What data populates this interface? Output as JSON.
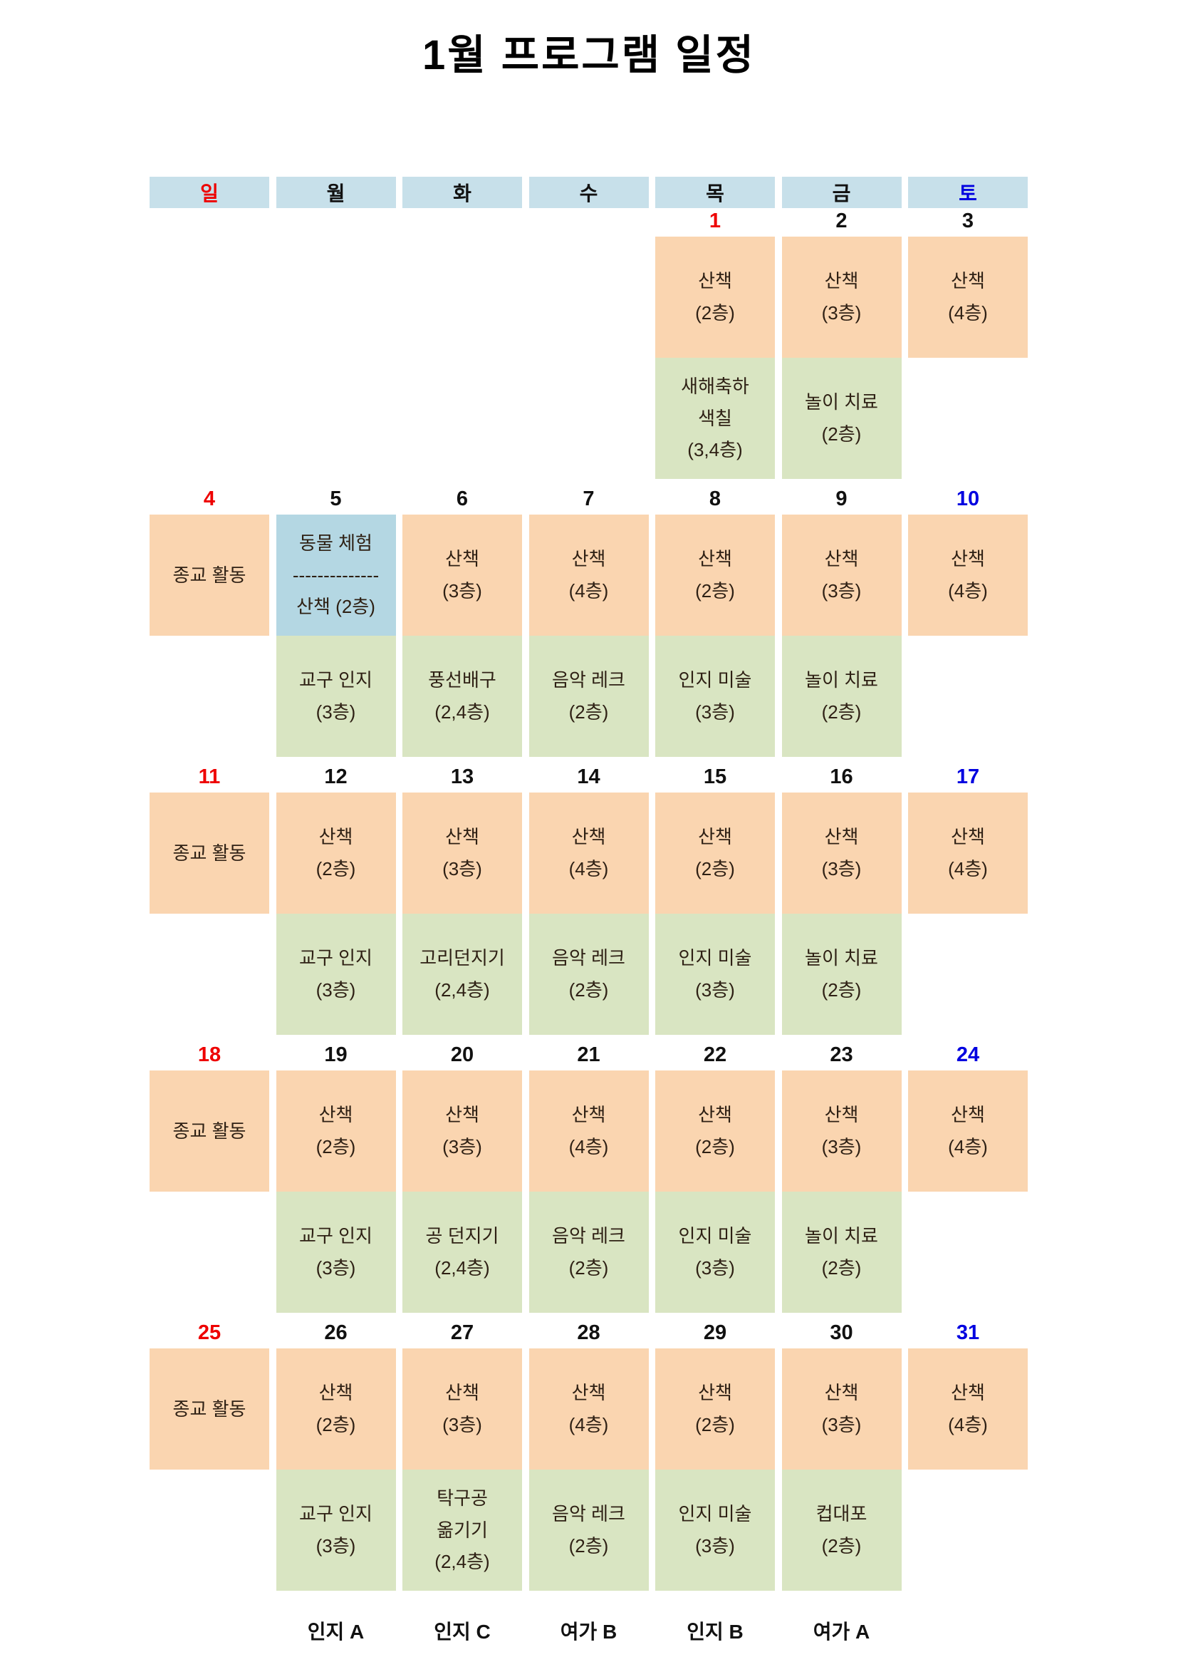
{
  "title": "1월 프로그램 일정",
  "colors": {
    "header_bg": "#c7e0ea",
    "morning_cell_bg": "#fad5b0",
    "afternoon_cell_bg": "#d9e5c2",
    "special_cell_bg": "#b4d7e3",
    "holiday_red": "#ee0000",
    "saturday_blue": "#0000e0"
  },
  "weekday_header": [
    {
      "label": "일",
      "color": "red"
    },
    {
      "label": "월",
      "color": "black"
    },
    {
      "label": "화",
      "color": "black"
    },
    {
      "label": "수",
      "color": "black"
    },
    {
      "label": "목",
      "color": "black"
    },
    {
      "label": "금",
      "color": "black"
    },
    {
      "label": "토",
      "color": "blue"
    }
  ],
  "weeks": [
    [
      null,
      null,
      null,
      null,
      {
        "num": "1",
        "color": "red",
        "top": {
          "bg": "orange",
          "lines": [
            "산책",
            "(2층)"
          ]
        },
        "bottom": {
          "bg": "green",
          "lines": [
            "새해축하",
            "색칠",
            "(3,4층)"
          ]
        }
      },
      {
        "num": "2",
        "color": "black",
        "top": {
          "bg": "orange",
          "lines": [
            "산책",
            "(3층)"
          ]
        },
        "bottom": {
          "bg": "green",
          "lines": [
            "놀이 치료",
            "(2층)"
          ]
        }
      },
      {
        "num": "3",
        "color": "black",
        "top": {
          "bg": "orange",
          "lines": [
            "산책",
            "(4층)"
          ]
        },
        "bottom": null
      }
    ],
    [
      {
        "num": "4",
        "color": "red",
        "top": {
          "bg": "orange",
          "lines": [
            "종교 활동"
          ]
        },
        "bottom": null
      },
      {
        "num": "5",
        "color": "black",
        "top": {
          "bg": "blue",
          "lines": [
            "동물 체험",
            "--------------",
            "산책 (2층)"
          ]
        },
        "bottom": {
          "bg": "green",
          "lines": [
            "교구 인지",
            "(3층)"
          ]
        }
      },
      {
        "num": "6",
        "color": "black",
        "top": {
          "bg": "orange",
          "lines": [
            "산책",
            "(3층)"
          ]
        },
        "bottom": {
          "bg": "green",
          "lines": [
            "풍선배구",
            "(2,4층)"
          ]
        }
      },
      {
        "num": "7",
        "color": "black",
        "top": {
          "bg": "orange",
          "lines": [
            "산책",
            "(4층)"
          ]
        },
        "bottom": {
          "bg": "green",
          "lines": [
            "음악 레크",
            "(2층)"
          ]
        }
      },
      {
        "num": "8",
        "color": "black",
        "top": {
          "bg": "orange",
          "lines": [
            "산책",
            "(2층)"
          ]
        },
        "bottom": {
          "bg": "green",
          "lines": [
            "인지 미술",
            "(3층)"
          ]
        }
      },
      {
        "num": "9",
        "color": "black",
        "top": {
          "bg": "orange",
          "lines": [
            "산책",
            "(3층)"
          ]
        },
        "bottom": {
          "bg": "green",
          "lines": [
            "놀이 치료",
            "(2층)"
          ]
        }
      },
      {
        "num": "10",
        "color": "blue",
        "top": {
          "bg": "orange",
          "lines": [
            "산책",
            "(4층)"
          ]
        },
        "bottom": null
      }
    ],
    [
      {
        "num": "11",
        "color": "red",
        "top": {
          "bg": "orange",
          "lines": [
            "종교 활동"
          ]
        },
        "bottom": null
      },
      {
        "num": "12",
        "color": "black",
        "top": {
          "bg": "orange",
          "lines": [
            "산책",
            "(2층)"
          ]
        },
        "bottom": {
          "bg": "green",
          "lines": [
            "교구 인지",
            "(3층)"
          ]
        }
      },
      {
        "num": "13",
        "color": "black",
        "top": {
          "bg": "orange",
          "lines": [
            "산책",
            "(3층)"
          ]
        },
        "bottom": {
          "bg": "green",
          "lines": [
            "고리던지기",
            "(2,4층)"
          ]
        }
      },
      {
        "num": "14",
        "color": "black",
        "top": {
          "bg": "orange",
          "lines": [
            "산책",
            "(4층)"
          ]
        },
        "bottom": {
          "bg": "green",
          "lines": [
            "음악 레크",
            "(2층)"
          ]
        }
      },
      {
        "num": "15",
        "color": "black",
        "top": {
          "bg": "orange",
          "lines": [
            "산책",
            "(2층)"
          ]
        },
        "bottom": {
          "bg": "green",
          "lines": [
            "인지 미술",
            "(3층)"
          ]
        }
      },
      {
        "num": "16",
        "color": "black",
        "top": {
          "bg": "orange",
          "lines": [
            "산책",
            "(3층)"
          ]
        },
        "bottom": {
          "bg": "green",
          "lines": [
            "놀이 치료",
            "(2층)"
          ]
        }
      },
      {
        "num": "17",
        "color": "blue",
        "top": {
          "bg": "orange",
          "lines": [
            "산책",
            "(4층)"
          ]
        },
        "bottom": null
      }
    ],
    [
      {
        "num": "18",
        "color": "red",
        "top": {
          "bg": "orange",
          "lines": [
            "종교 활동"
          ]
        },
        "bottom": null
      },
      {
        "num": "19",
        "color": "black",
        "top": {
          "bg": "orange",
          "lines": [
            "산책",
            "(2층)"
          ]
        },
        "bottom": {
          "bg": "green",
          "lines": [
            "교구 인지",
            "(3층)"
          ]
        }
      },
      {
        "num": "20",
        "color": "black",
        "top": {
          "bg": "orange",
          "lines": [
            "산책",
            "(3층)"
          ]
        },
        "bottom": {
          "bg": "green",
          "lines": [
            "공 던지기",
            "(2,4층)"
          ]
        }
      },
      {
        "num": "21",
        "color": "black",
        "top": {
          "bg": "orange",
          "lines": [
            "산책",
            "(4층)"
          ]
        },
        "bottom": {
          "bg": "green",
          "lines": [
            "음악 레크",
            "(2층)"
          ]
        }
      },
      {
        "num": "22",
        "color": "black",
        "top": {
          "bg": "orange",
          "lines": [
            "산책",
            "(2층)"
          ]
        },
        "bottom": {
          "bg": "green",
          "lines": [
            "인지 미술",
            "(3층)"
          ]
        }
      },
      {
        "num": "23",
        "color": "black",
        "top": {
          "bg": "orange",
          "lines": [
            "산책",
            "(3층)"
          ]
        },
        "bottom": {
          "bg": "green",
          "lines": [
            "놀이 치료",
            "(2층)"
          ]
        }
      },
      {
        "num": "24",
        "color": "blue",
        "top": {
          "bg": "orange",
          "lines": [
            "산책",
            "(4층)"
          ]
        },
        "bottom": null
      }
    ],
    [
      {
        "num": "25",
        "color": "red",
        "top": {
          "bg": "orange",
          "lines": [
            "종교 활동"
          ]
        },
        "bottom": null
      },
      {
        "num": "26",
        "color": "black",
        "top": {
          "bg": "orange",
          "lines": [
            "산책",
            "(2층)"
          ]
        },
        "bottom": {
          "bg": "green",
          "lines": [
            "교구 인지",
            "(3층)"
          ]
        }
      },
      {
        "num": "27",
        "color": "black",
        "top": {
          "bg": "orange",
          "lines": [
            "산책",
            "(3층)"
          ]
        },
        "bottom": {
          "bg": "green",
          "lines": [
            "탁구공",
            "옮기기",
            "(2,4층)"
          ]
        }
      },
      {
        "num": "28",
        "color": "black",
        "top": {
          "bg": "orange",
          "lines": [
            "산책",
            "(4층)"
          ]
        },
        "bottom": {
          "bg": "green",
          "lines": [
            "음악 레크",
            "(2층)"
          ]
        }
      },
      {
        "num": "29",
        "color": "black",
        "top": {
          "bg": "orange",
          "lines": [
            "산책",
            "(2층)"
          ]
        },
        "bottom": {
          "bg": "green",
          "lines": [
            "인지 미술",
            "(3층)"
          ]
        }
      },
      {
        "num": "30",
        "color": "black",
        "top": {
          "bg": "orange",
          "lines": [
            "산책",
            "(3층)"
          ]
        },
        "bottom": {
          "bg": "green",
          "lines": [
            "컵대포",
            "(2층)"
          ]
        }
      },
      {
        "num": "31",
        "color": "blue",
        "top": {
          "bg": "orange",
          "lines": [
            "산책",
            "(4층)"
          ]
        },
        "bottom": null
      }
    ]
  ],
  "footer_labels": [
    "",
    "인지 A",
    "인지 C",
    "여가 B",
    "인지 B",
    "여가 A",
    ""
  ]
}
